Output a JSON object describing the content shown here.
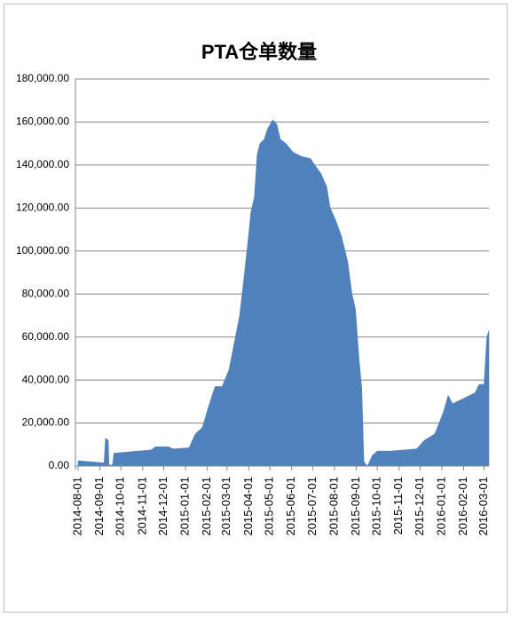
{
  "chart_data": {
    "type": "area",
    "title": "PTA仓单数量",
    "x": [
      "2014-08-01",
      "2014-09-07",
      "2014-09-09",
      "2014-09-13",
      "2014-09-14",
      "2014-09-19",
      "2014-09-21",
      "2014-11-13",
      "2014-11-19",
      "2014-12-08",
      "2014-12-14",
      "2015-01-06",
      "2015-01-08",
      "2015-01-15",
      "2015-01-25",
      "2015-02-03",
      "2015-02-12",
      "2015-02-22",
      "2015-03-04",
      "2015-03-13",
      "2015-03-19",
      "2015-03-26",
      "2015-03-31",
      "2015-04-04",
      "2015-04-09",
      "2015-04-13",
      "2015-04-17",
      "2015-04-23",
      "2015-04-28",
      "2015-05-05",
      "2015-05-11",
      "2015-05-16",
      "2015-05-24",
      "2015-06-03",
      "2015-06-15",
      "2015-06-28",
      "2015-07-04",
      "2015-07-13",
      "2015-07-21",
      "2015-07-26",
      "2015-08-02",
      "2015-08-11",
      "2015-08-20",
      "2015-08-26",
      "2015-08-31",
      "2015-09-05",
      "2015-09-09",
      "2015-09-12",
      "2015-09-17",
      "2015-09-24",
      "2015-10-01",
      "2015-10-20",
      "2015-11-08",
      "2015-11-26",
      "2015-12-07",
      "2015-12-22",
      "2015-12-28",
      "2016-01-03",
      "2016-01-10",
      "2016-01-16",
      "2016-01-29",
      "2016-02-10",
      "2016-02-17",
      "2016-02-23",
      "2016-03-01",
      "2016-03-05",
      "2016-03-08"
    ],
    "series": [
      {
        "name": "PTA仓单数量",
        "color": "#4f81bd",
        "values": [
          2500,
          1500,
          13000,
          12000,
          500,
          500,
          6000,
          7500,
          9000,
          9000,
          8000,
          8500,
          10000,
          15000,
          18000,
          28000,
          37000,
          37000,
          45000,
          60000,
          70000,
          90000,
          105000,
          118000,
          125000,
          145000,
          150000,
          152000,
          157000,
          161000,
          159000,
          152000,
          150000,
          146000,
          144000,
          143000,
          140000,
          136000,
          130000,
          120000,
          115000,
          107000,
          95000,
          80000,
          73000,
          50000,
          36000,
          2000,
          0,
          5000,
          7000,
          7000,
          7500,
          8000,
          12000,
          15000,
          20000,
          25000,
          33000,
          29000,
          31000,
          33000,
          34000,
          38000,
          38000,
          60000,
          63000
        ]
      }
    ],
    "xlim": [
      "2014-08-01",
      "2016-03-08"
    ],
    "xticks": [
      "2014-08-01",
      "2014-09-01",
      "2014-10-01",
      "2014-11-01",
      "2014-12-01",
      "2015-01-01",
      "2015-02-01",
      "2015-03-01",
      "2015-04-01",
      "2015-05-01",
      "2015-06-01",
      "2015-07-01",
      "2015-08-01",
      "2015-09-01",
      "2015-10-01",
      "2015-11-01",
      "2015-12-01",
      "2016-01-01",
      "2016-02-01",
      "2016-03-01"
    ],
    "ylim": [
      0,
      180000
    ],
    "yticks": [
      {
        "value": 0,
        "label": "0.00"
      },
      {
        "value": 20000,
        "label": "20,000.00"
      },
      {
        "value": 40000,
        "label": "40,000.00"
      },
      {
        "value": 60000,
        "label": "60,000.00"
      },
      {
        "value": 80000,
        "label": "80,000.00"
      },
      {
        "value": 100000,
        "label": "100,000.00"
      },
      {
        "value": 120000,
        "label": "120,000.00"
      },
      {
        "value": 140000,
        "label": "140,000.00"
      },
      {
        "value": 160000,
        "label": "160,000.00"
      },
      {
        "value": 180000,
        "label": "180,000.00"
      }
    ],
    "grid": true
  }
}
